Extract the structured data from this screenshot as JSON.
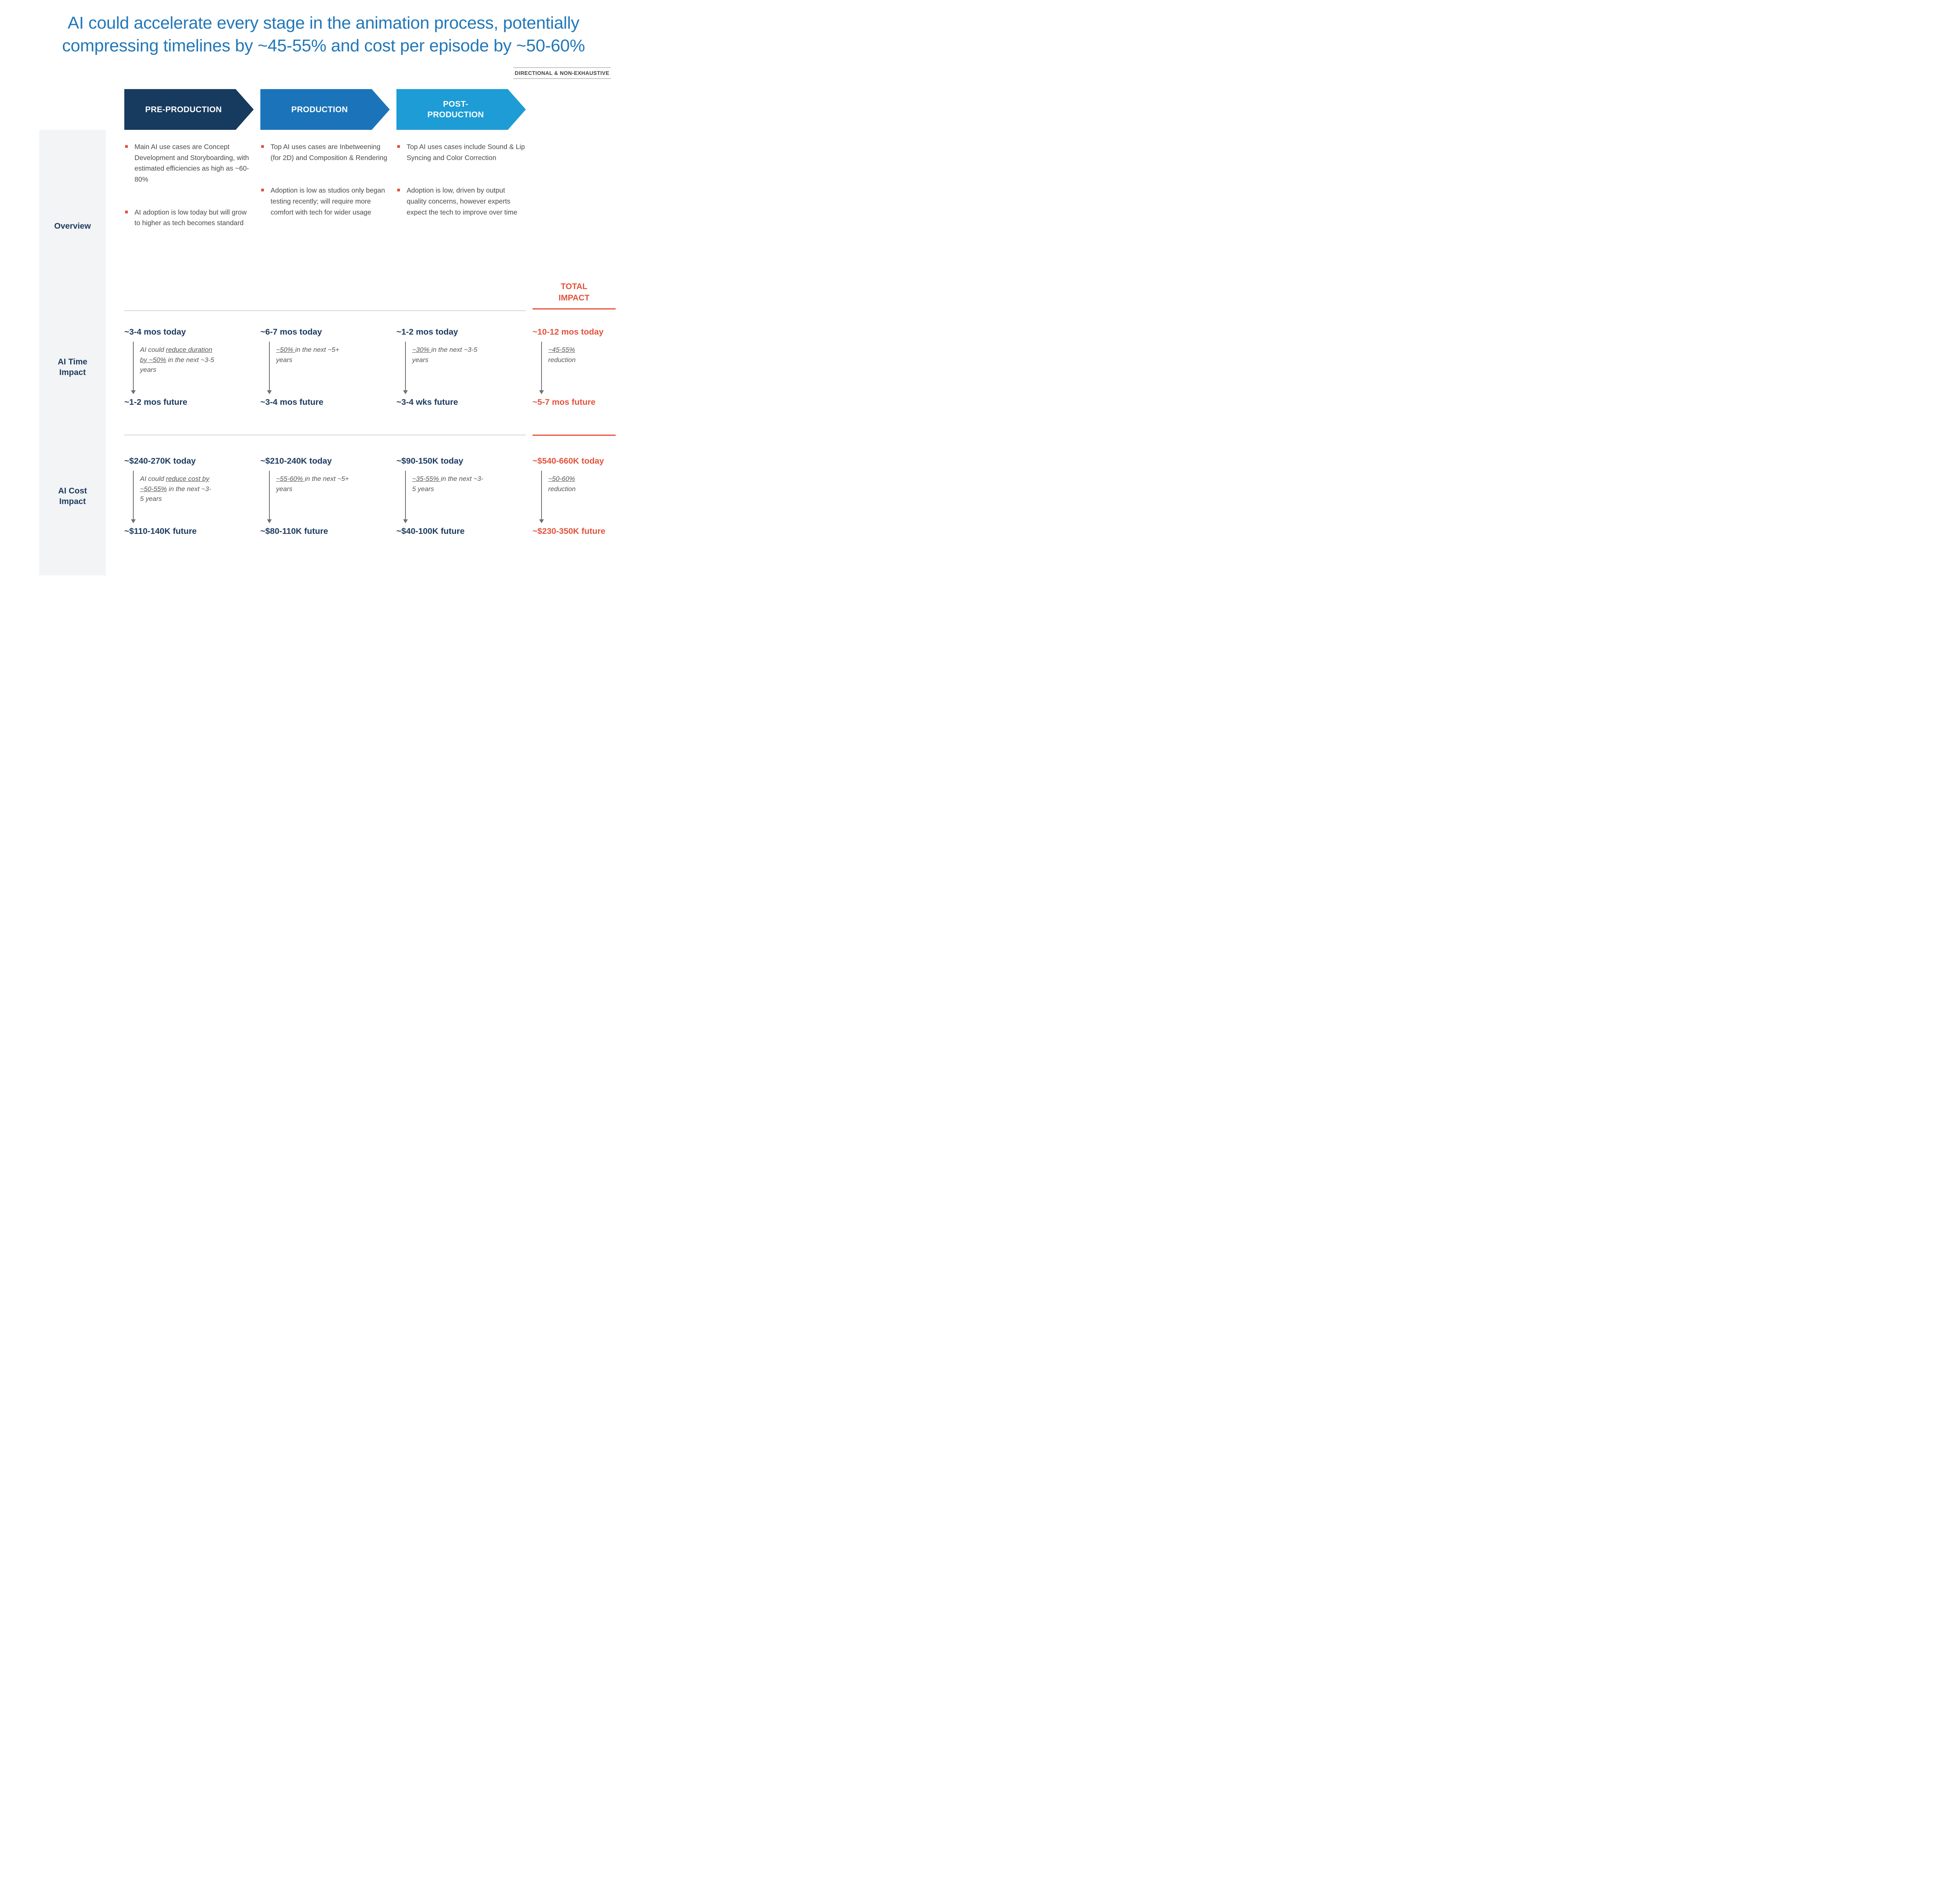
{
  "title": "AI could accelerate every stage in the animation process, potentially compressing timelines by ~45-55% and cost per episode by ~50-60%",
  "disclaimer": "DIRECTIONAL & NON-EXHAUSTIVE",
  "colors": {
    "title_blue": "#2278B9",
    "navy": "#1B3A5F",
    "accent_red": "#E2523C",
    "pre": "#173A5F",
    "prod": "#1B74B9",
    "post": "#1D9CD6"
  },
  "stages": [
    {
      "label": "PRE-PRODUCTION"
    },
    {
      "label": "PRODUCTION"
    },
    {
      "label": "POST-\nPRODUCTION"
    }
  ],
  "rows": {
    "overview_label": "Overview",
    "time_label": "AI Time Impact",
    "cost_label": "AI Cost Impact"
  },
  "total_header": "TOTAL\nIMPACT",
  "overview": {
    "pre": [
      "Main AI use cases are Concept Development and Storyboarding, with estimated efficiencies as high as ~60-80%",
      "AI adoption is low today but will grow to higher as tech becomes standard"
    ],
    "prod": [
      "Top AI uses cases are Inbetweening (for 2D) and Composition & Rendering",
      "Adoption is low as studios only began testing recently; will require more comfort with tech for wider usage"
    ],
    "post": [
      "Top AI uses cases include Sound & Lip Syncing and Color Correction",
      "Adoption is low, driven by output quality concerns, however experts expect the tech to improve over time"
    ]
  },
  "time": {
    "pre": {
      "today": "~3-4 mos today",
      "note_pre": "AI could ",
      "note_u": "reduce duration by ~50%",
      "note_post": " in the next ~3-5 years",
      "future": "~1-2 mos future"
    },
    "prod": {
      "today": "~6-7 mos today",
      "note_pre": "",
      "note_u": "~50% ",
      "note_post": "in the next ~5+ years",
      "future": "~3-4 mos future"
    },
    "post": {
      "today": "~1-2 mos today",
      "note_pre": "",
      "note_u": "~30% ",
      "note_post": "in the next ~3-5 years",
      "future": "~3-4 wks future"
    },
    "total": {
      "today": "~10-12 mos today",
      "note_pre": "",
      "note_u": "~45-55%",
      "note_post": "\nreduction",
      "future": "~5-7 mos future"
    }
  },
  "cost": {
    "pre": {
      "today": "~$240-270K today",
      "note_pre": "AI could ",
      "note_u": "reduce cost by ~50-55%",
      "note_post": " in the next ~3-5 years",
      "future": "~$110-140K future"
    },
    "prod": {
      "today": "~$210-240K today",
      "note_pre": "",
      "note_u": "~55-60% ",
      "note_post": "in the next ~5+ years",
      "future": "~$80-110K future"
    },
    "post": {
      "today": "~$90-150K today",
      "note_pre": "",
      "note_u": "~35-55% ",
      "note_post": "in the next ~3-5 years",
      "future": "~$40-100K future"
    },
    "total": {
      "today": "~$540-660K today",
      "note_pre": "",
      "note_u": "~50-60%",
      "note_post": "\nreduction",
      "future": "~$230-350K future"
    }
  }
}
